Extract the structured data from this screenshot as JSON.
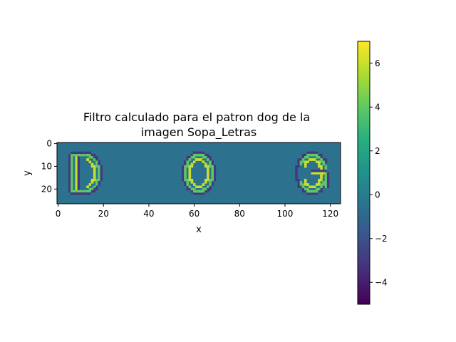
{
  "chart_data": {
    "type": "heatmap",
    "title_lines": [
      "Filtro calculado para el patron dog de la",
      "imagen Sopa_Letras"
    ],
    "xlabel": "x",
    "ylabel": "y",
    "xlim": [
      -0.5,
      124.5
    ],
    "ylim": [
      26.5,
      -0.5
    ],
    "x_ticks": [
      0,
      20,
      40,
      60,
      80,
      100,
      120
    ],
    "y_ticks": [
      0,
      10,
      20
    ],
    "colormap": "viridis",
    "colorbar": {
      "range": [
        -5,
        7
      ],
      "ticks": [
        -4,
        -2,
        0,
        2,
        4,
        6
      ]
    },
    "background_value": 0,
    "letters": [
      "D",
      "O",
      "G"
    ],
    "letter_centers_x": [
      12,
      62,
      112
    ],
    "letter_rows": [
      5,
      21
    ],
    "edge_values": {
      "outer": -3,
      "inner": 4,
      "highlight": 6
    }
  }
}
